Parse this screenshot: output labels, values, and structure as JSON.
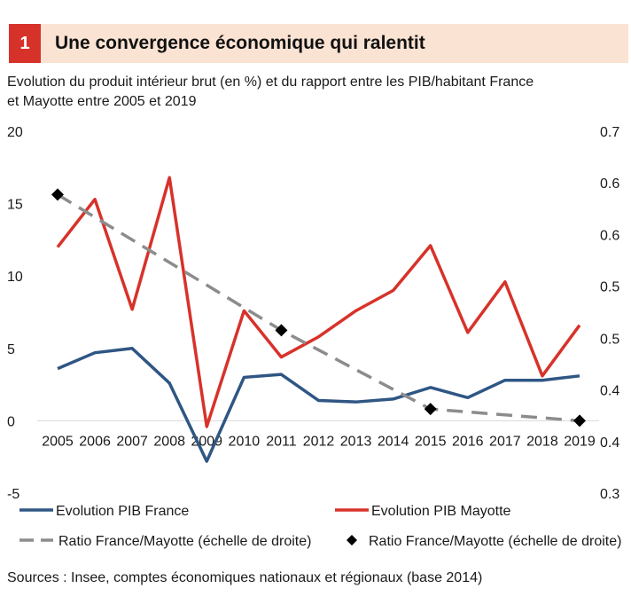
{
  "header": {
    "number": "1",
    "title": "Une convergence économique qui ralentit"
  },
  "subtitle_line1": "Evolution du produit intérieur brut (en %) et du rapport entre les PIB/habitant  France",
  "subtitle_line2": "et Mayotte entre 2005 et 2019",
  "source": "Sources : Insee, comptes économiques nationaux et régionaux (base 2014)",
  "colors": {
    "france": "#2f5684",
    "mayotte": "#d7322a",
    "ratio_trend": "#8c8c8c",
    "ratio_points": "#000000",
    "header_bg": "#fbe3d3",
    "badge_bg": "#d7322a"
  },
  "chart_data": {
    "type": "line",
    "categories": [
      "2005",
      "2006",
      "2007",
      "2008",
      "2009",
      "2010",
      "2011",
      "2012",
      "2013",
      "2014",
      "2015",
      "2016",
      "2017",
      "2018",
      "2019"
    ],
    "left_axis": {
      "ylim": [
        -5,
        20
      ],
      "ticks": [
        "-5",
        "0",
        "5",
        "10",
        "15",
        "20"
      ]
    },
    "right_axis": {
      "ylim": [
        0.3,
        0.7
      ],
      "tick_values": [
        0.3,
        0.357,
        0.414,
        0.471,
        0.529,
        0.586,
        0.643,
        0.7
      ],
      "tick_labels": [
        "0.3",
        "0.4",
        "0.4",
        "0.5",
        "0.5",
        "0.6",
        "0.6",
        "0.7"
      ]
    },
    "grid": "none",
    "legend": "bottom",
    "series": [
      {
        "name": "Evolution PIB France",
        "axis": "left",
        "style": "line",
        "values": [
          3.6,
          4.7,
          5.0,
          2.6,
          -2.8,
          3.0,
          3.2,
          1.4,
          1.3,
          1.5,
          2.3,
          1.6,
          2.8,
          2.8,
          3.1
        ]
      },
      {
        "name": "Evolution  PIB Mayotte",
        "axis": "left",
        "style": "line",
        "values": [
          12.0,
          15.3,
          7.7,
          16.8,
          -0.4,
          7.6,
          4.4,
          5.8,
          7.6,
          9.0,
          12.1,
          6.1,
          9.6,
          3.1,
          6.6
        ]
      },
      {
        "name": "Ratio France/Mayotte (échelle de droite)",
        "axis": "right",
        "style": "dashed",
        "x": [
          "2005",
          "2011",
          "2015",
          "2019"
        ],
        "values": [
          0.63,
          0.48,
          0.393,
          0.38
        ]
      },
      {
        "name": "Ratio France/Mayotte (échelle de droite)",
        "axis": "right",
        "style": "markers",
        "x": [
          "2005",
          "2011",
          "2015",
          "2019"
        ],
        "values": [
          0.63,
          0.48,
          0.393,
          0.38
        ]
      }
    ]
  }
}
